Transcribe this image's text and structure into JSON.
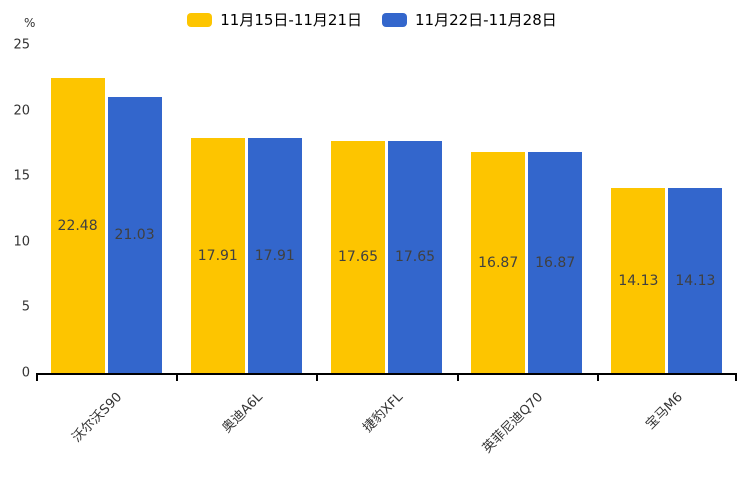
{
  "chart_data": {
    "type": "bar",
    "title": "",
    "categories": [
      "沃尔沃S90",
      "奥迪A6L",
      "捷豹XFL",
      "英菲尼迪Q70",
      "宝马M6"
    ],
    "series": [
      {
        "name": "11月15日-11月21日",
        "color": "#FDC500",
        "values": [
          22.48,
          17.91,
          17.65,
          16.87,
          14.13
        ]
      },
      {
        "name": "11月22日-11月28日",
        "color": "#3366CC",
        "values": [
          21.03,
          17.91,
          17.65,
          16.87,
          14.13
        ]
      }
    ],
    "xlabel": "",
    "ylabel": "%",
    "ylim": [
      0,
      25
    ],
    "yticks": [
      0,
      5,
      10,
      15,
      20,
      25
    ],
    "legend_position": "top",
    "grid": false,
    "value_labels": "inside-center",
    "value_label_decimals": 2,
    "category_label_rotation_deg": 45,
    "axis_color": "#000000",
    "text_color": "#333333",
    "value_label_color": "#404040"
  }
}
